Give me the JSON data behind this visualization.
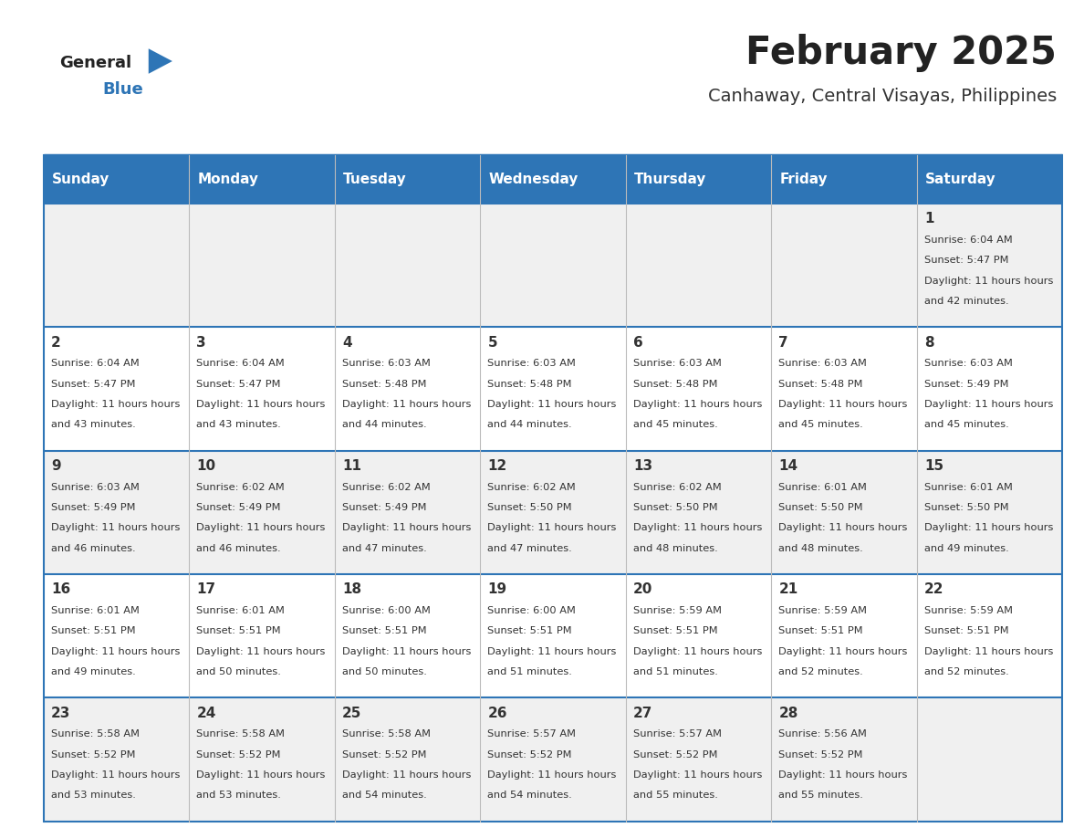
{
  "title": "February 2025",
  "subtitle": "Canhaway, Central Visayas, Philippines",
  "days_of_week": [
    "Sunday",
    "Monday",
    "Tuesday",
    "Wednesday",
    "Thursday",
    "Friday",
    "Saturday"
  ],
  "header_bg": "#2e75b6",
  "header_text_color": "#ffffff",
  "cell_bg_even": "#f0f0f0",
  "cell_bg_odd": "#ffffff",
  "cell_text_color": "#333333",
  "day_num_color": "#333333",
  "border_color": "#2e75b6",
  "title_color": "#222222",
  "subtitle_color": "#333333",
  "logo_general_color": "#222222",
  "logo_blue_color": "#2e75b6",
  "calendar": [
    [
      null,
      null,
      null,
      null,
      null,
      null,
      {
        "day": 1,
        "sunrise": "6:04 AM",
        "sunset": "5:47 PM",
        "daylight": "11 hours and 42 minutes."
      }
    ],
    [
      {
        "day": 2,
        "sunrise": "6:04 AM",
        "sunset": "5:47 PM",
        "daylight": "11 hours and 43 minutes."
      },
      {
        "day": 3,
        "sunrise": "6:04 AM",
        "sunset": "5:47 PM",
        "daylight": "11 hours and 43 minutes."
      },
      {
        "day": 4,
        "sunrise": "6:03 AM",
        "sunset": "5:48 PM",
        "daylight": "11 hours and 44 minutes."
      },
      {
        "day": 5,
        "sunrise": "6:03 AM",
        "sunset": "5:48 PM",
        "daylight": "11 hours and 44 minutes."
      },
      {
        "day": 6,
        "sunrise": "6:03 AM",
        "sunset": "5:48 PM",
        "daylight": "11 hours and 45 minutes."
      },
      {
        "day": 7,
        "sunrise": "6:03 AM",
        "sunset": "5:48 PM",
        "daylight": "11 hours and 45 minutes."
      },
      {
        "day": 8,
        "sunrise": "6:03 AM",
        "sunset": "5:49 PM",
        "daylight": "11 hours and 45 minutes."
      }
    ],
    [
      {
        "day": 9,
        "sunrise": "6:03 AM",
        "sunset": "5:49 PM",
        "daylight": "11 hours and 46 minutes."
      },
      {
        "day": 10,
        "sunrise": "6:02 AM",
        "sunset": "5:49 PM",
        "daylight": "11 hours and 46 minutes."
      },
      {
        "day": 11,
        "sunrise": "6:02 AM",
        "sunset": "5:49 PM",
        "daylight": "11 hours and 47 minutes."
      },
      {
        "day": 12,
        "sunrise": "6:02 AM",
        "sunset": "5:50 PM",
        "daylight": "11 hours and 47 minutes."
      },
      {
        "day": 13,
        "sunrise": "6:02 AM",
        "sunset": "5:50 PM",
        "daylight": "11 hours and 48 minutes."
      },
      {
        "day": 14,
        "sunrise": "6:01 AM",
        "sunset": "5:50 PM",
        "daylight": "11 hours and 48 minutes."
      },
      {
        "day": 15,
        "sunrise": "6:01 AM",
        "sunset": "5:50 PM",
        "daylight": "11 hours and 49 minutes."
      }
    ],
    [
      {
        "day": 16,
        "sunrise": "6:01 AM",
        "sunset": "5:51 PM",
        "daylight": "11 hours and 49 minutes."
      },
      {
        "day": 17,
        "sunrise": "6:01 AM",
        "sunset": "5:51 PM",
        "daylight": "11 hours and 50 minutes."
      },
      {
        "day": 18,
        "sunrise": "6:00 AM",
        "sunset": "5:51 PM",
        "daylight": "11 hours and 50 minutes."
      },
      {
        "day": 19,
        "sunrise": "6:00 AM",
        "sunset": "5:51 PM",
        "daylight": "11 hours and 51 minutes."
      },
      {
        "day": 20,
        "sunrise": "5:59 AM",
        "sunset": "5:51 PM",
        "daylight": "11 hours and 51 minutes."
      },
      {
        "day": 21,
        "sunrise": "5:59 AM",
        "sunset": "5:51 PM",
        "daylight": "11 hours and 52 minutes."
      },
      {
        "day": 22,
        "sunrise": "5:59 AM",
        "sunset": "5:51 PM",
        "daylight": "11 hours and 52 minutes."
      }
    ],
    [
      {
        "day": 23,
        "sunrise": "5:58 AM",
        "sunset": "5:52 PM",
        "daylight": "11 hours and 53 minutes."
      },
      {
        "day": 24,
        "sunrise": "5:58 AM",
        "sunset": "5:52 PM",
        "daylight": "11 hours and 53 minutes."
      },
      {
        "day": 25,
        "sunrise": "5:58 AM",
        "sunset": "5:52 PM",
        "daylight": "11 hours and 54 minutes."
      },
      {
        "day": 26,
        "sunrise": "5:57 AM",
        "sunset": "5:52 PM",
        "daylight": "11 hours and 54 minutes."
      },
      {
        "day": 27,
        "sunrise": "5:57 AM",
        "sunset": "5:52 PM",
        "daylight": "11 hours and 55 minutes."
      },
      {
        "day": 28,
        "sunrise": "5:56 AM",
        "sunset": "5:52 PM",
        "daylight": "11 hours and 55 minutes."
      },
      null
    ]
  ]
}
